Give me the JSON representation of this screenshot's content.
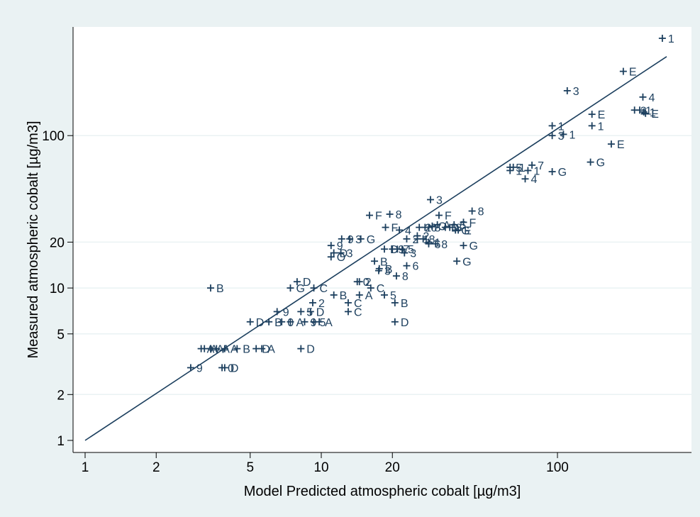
{
  "chart_data": {
    "type": "scatter",
    "title": "",
    "xlabel": "Model Predicted atmospheric cobalt  [µg/m3]",
    "ylabel": "Measured atmospheric cobalt [µg/m3]",
    "xscale": "log",
    "yscale": "log",
    "xlim": [
      1,
      290
    ],
    "ylim": [
      0.9,
      520
    ],
    "xticks": [
      1,
      2,
      5,
      10,
      20,
      100
    ],
    "yticks": [
      1,
      2,
      5,
      10,
      20,
      100
    ],
    "grid": "horizontal",
    "legend": "none",
    "marker": "plus",
    "colors": {
      "frame": "#eaf2f3",
      "plot_bg": "#ffffff",
      "marks": "#1c3f5e",
      "grid": "#eaf2f3"
    },
    "reference_line": {
      "from": [
        1,
        1
      ],
      "to": [
        290,
        330
      ]
    },
    "points": [
      {
        "x": 3.4,
        "y": 10,
        "label": "B"
      },
      {
        "x": 2.8,
        "y": 3,
        "label": "9"
      },
      {
        "x": 3.8,
        "y": 3,
        "label": "0"
      },
      {
        "x": 3.9,
        "y": 3,
        "label": "D"
      },
      {
        "x": 3.1,
        "y": 4,
        "label": "A"
      },
      {
        "x": 3.2,
        "y": 4,
        "label": "A"
      },
      {
        "x": 3.4,
        "y": 4,
        "label": "A"
      },
      {
        "x": 3.6,
        "y": 4,
        "label": "A"
      },
      {
        "x": 3.9,
        "y": 4,
        "label": "A"
      },
      {
        "x": 4.4,
        "y": 4,
        "label": "B"
      },
      {
        "x": 5.3,
        "y": 4,
        "label": "D"
      },
      {
        "x": 5.6,
        "y": 4,
        "label": "A"
      },
      {
        "x": 8.2,
        "y": 4,
        "label": "D"
      },
      {
        "x": 5.0,
        "y": 6,
        "label": "D"
      },
      {
        "x": 6.0,
        "y": 6,
        "label": "B"
      },
      {
        "x": 6.8,
        "y": 6,
        "label": "0"
      },
      {
        "x": 7.4,
        "y": 6,
        "label": "A"
      },
      {
        "x": 8.5,
        "y": 6,
        "label": "9"
      },
      {
        "x": 9.3,
        "y": 6,
        "label": "5"
      },
      {
        "x": 9.8,
        "y": 6,
        "label": "A"
      },
      {
        "x": 6.5,
        "y": 7,
        "label": "9"
      },
      {
        "x": 8.2,
        "y": 7,
        "label": "5"
      },
      {
        "x": 9.0,
        "y": 7,
        "label": "D"
      },
      {
        "x": 9.2,
        "y": 8,
        "label": "2"
      },
      {
        "x": 7.9,
        "y": 11,
        "label": "D"
      },
      {
        "x": 7.4,
        "y": 10,
        "label": "G"
      },
      {
        "x": 9.3,
        "y": 10,
        "label": "C"
      },
      {
        "x": 11.3,
        "y": 9,
        "label": "B"
      },
      {
        "x": 13,
        "y": 8,
        "label": "C"
      },
      {
        "x": 13,
        "y": 7,
        "label": "C"
      },
      {
        "x": 14.2,
        "y": 11,
        "label": "0"
      },
      {
        "x": 14.5,
        "y": 11,
        "label": "2"
      },
      {
        "x": 14.5,
        "y": 9,
        "label": "A"
      },
      {
        "x": 16.2,
        "y": 10,
        "label": "C"
      },
      {
        "x": 18.5,
        "y": 9,
        "label": "5"
      },
      {
        "x": 20.5,
        "y": 8,
        "label": "B"
      },
      {
        "x": 20.5,
        "y": 6,
        "label": "D"
      },
      {
        "x": 12.2,
        "y": 21,
        "label": "9"
      },
      {
        "x": 13.2,
        "y": 21,
        "label": "3"
      },
      {
        "x": 14.7,
        "y": 21,
        "label": "G"
      },
      {
        "x": 11,
        "y": 19,
        "label": "9"
      },
      {
        "x": 11.3,
        "y": 17,
        "label": "D"
      },
      {
        "x": 11,
        "y": 16,
        "label": "O"
      },
      {
        "x": 12.1,
        "y": 17,
        "label": "3"
      },
      {
        "x": 16,
        "y": 30,
        "label": "F"
      },
      {
        "x": 19.5,
        "y": 30.5,
        "label": "8"
      },
      {
        "x": 18.7,
        "y": 25,
        "label": "F"
      },
      {
        "x": 21.4,
        "y": 24,
        "label": "4"
      },
      {
        "x": 16.8,
        "y": 15,
        "label": "B"
      },
      {
        "x": 17.5,
        "y": 13,
        "label": "3"
      },
      {
        "x": 17.6,
        "y": 13.4,
        "label": "B"
      },
      {
        "x": 18.5,
        "y": 18,
        "label": "D"
      },
      {
        "x": 20,
        "y": 18,
        "label": "9"
      },
      {
        "x": 21,
        "y": 18,
        "label": "7"
      },
      {
        "x": 22,
        "y": 18,
        "label": "5"
      },
      {
        "x": 22.5,
        "y": 17,
        "label": "3"
      },
      {
        "x": 20.8,
        "y": 12,
        "label": "8"
      },
      {
        "x": 23,
        "y": 14,
        "label": "6"
      },
      {
        "x": 23,
        "y": 21,
        "label": "2"
      },
      {
        "x": 25.5,
        "y": 22,
        "label": "2"
      },
      {
        "x": 25.5,
        "y": 21,
        "label": "1"
      },
      {
        "x": 26,
        "y": 25,
        "label": "2"
      },
      {
        "x": 27.5,
        "y": 25,
        "label": "6"
      },
      {
        "x": 28.5,
        "y": 25,
        "label": "8"
      },
      {
        "x": 27,
        "y": 21,
        "label": "8"
      },
      {
        "x": 28.5,
        "y": 20,
        "label": "1"
      },
      {
        "x": 28.5,
        "y": 19.5,
        "label": "6"
      },
      {
        "x": 30.5,
        "y": 19.5,
        "label": "8"
      },
      {
        "x": 29.5,
        "y": 25.5,
        "label": "O"
      },
      {
        "x": 31,
        "y": 26,
        "label": "A"
      },
      {
        "x": 33.5,
        "y": 25,
        "label": "D"
      },
      {
        "x": 35,
        "y": 25,
        "label": "8"
      },
      {
        "x": 37,
        "y": 24,
        "label": "G"
      },
      {
        "x": 38,
        "y": 24,
        "label": "E"
      },
      {
        "x": 29,
        "y": 38,
        "label": "3"
      },
      {
        "x": 31.5,
        "y": 30,
        "label": "F"
      },
      {
        "x": 36.5,
        "y": 26,
        "label": "5"
      },
      {
        "x": 43.5,
        "y": 32,
        "label": "8"
      },
      {
        "x": 40,
        "y": 27,
        "label": "F"
      },
      {
        "x": 40,
        "y": 19,
        "label": "G"
      },
      {
        "x": 37.5,
        "y": 15,
        "label": "G"
      },
      {
        "x": 63,
        "y": 62,
        "label": "5"
      },
      {
        "x": 65,
        "y": 62,
        "label": "1"
      },
      {
        "x": 63,
        "y": 59,
        "label": "1"
      },
      {
        "x": 75,
        "y": 59,
        "label": "1"
      },
      {
        "x": 78,
        "y": 64,
        "label": "7"
      },
      {
        "x": 73,
        "y": 52,
        "label": "4"
      },
      {
        "x": 95,
        "y": 58,
        "label": "G"
      },
      {
        "x": 95,
        "y": 116,
        "label": "1"
      },
      {
        "x": 95,
        "y": 100,
        "label": "3"
      },
      {
        "x": 106,
        "y": 102,
        "label": "1"
      },
      {
        "x": 110,
        "y": 197,
        "label": "3"
      },
      {
        "x": 140,
        "y": 138,
        "label": "E"
      },
      {
        "x": 140,
        "y": 116,
        "label": "1"
      },
      {
        "x": 138,
        "y": 67,
        "label": "G"
      },
      {
        "x": 169,
        "y": 88,
        "label": "E"
      },
      {
        "x": 190,
        "y": 264,
        "label": "E"
      },
      {
        "x": 230,
        "y": 179,
        "label": "4"
      },
      {
        "x": 212,
        "y": 147,
        "label": "2"
      },
      {
        "x": 223,
        "y": 147,
        "label": "1"
      },
      {
        "x": 232,
        "y": 143,
        "label": "1"
      },
      {
        "x": 236,
        "y": 140,
        "label": "E"
      },
      {
        "x": 278,
        "y": 435,
        "label": "1"
      }
    ]
  }
}
